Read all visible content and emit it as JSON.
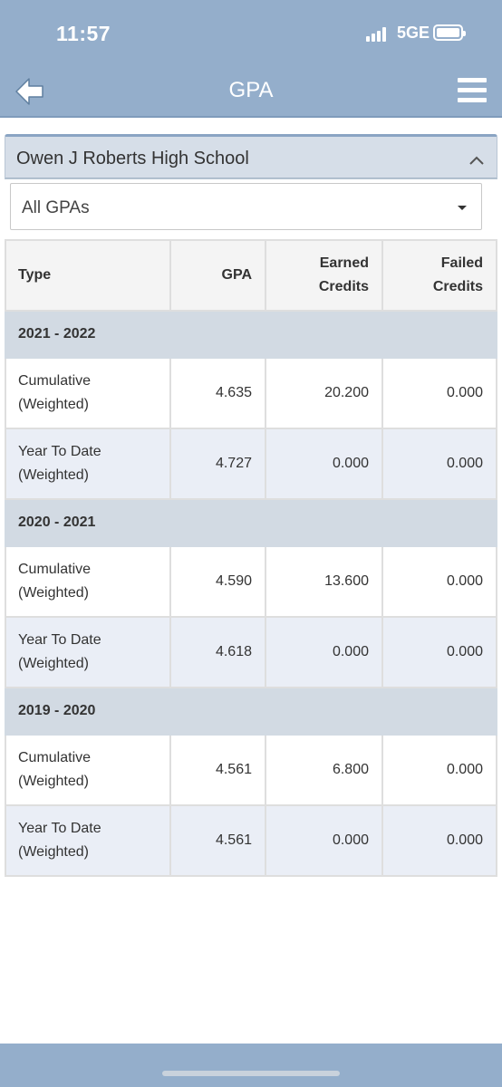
{
  "status_bar": {
    "time": "11:57",
    "network": "5GE"
  },
  "header": {
    "title": "GPA"
  },
  "panel": {
    "school": "Owen J Roberts High School"
  },
  "filter": {
    "selected": "All GPAs"
  },
  "table": {
    "headers": {
      "type": "Type",
      "gpa": "GPA",
      "earned_1": "Earned",
      "earned_2": "Credits",
      "failed_1": "Failed",
      "failed_2": "Credits"
    },
    "years": [
      {
        "label": "2021 - 2022",
        "rows": [
          {
            "type_1": "Cumulative",
            "type_2": "(Weighted)",
            "gpa": "4.635",
            "earned": "20.200",
            "failed": "0.000"
          },
          {
            "type_1": "Year To Date",
            "type_2": "(Weighted)",
            "gpa": "4.727",
            "earned": "0.000",
            "failed": "0.000"
          }
        ]
      },
      {
        "label": "2020 - 2021",
        "rows": [
          {
            "type_1": "Cumulative",
            "type_2": "(Weighted)",
            "gpa": "4.590",
            "earned": "13.600",
            "failed": "0.000"
          },
          {
            "type_1": "Year To Date",
            "type_2": "(Weighted)",
            "gpa": "4.618",
            "earned": "0.000",
            "failed": "0.000"
          }
        ]
      },
      {
        "label": "2019 - 2020",
        "rows": [
          {
            "type_1": "Cumulative",
            "type_2": "(Weighted)",
            "gpa": "4.561",
            "earned": "6.800",
            "failed": "0.000"
          },
          {
            "type_1": "Year To Date",
            "type_2": "(Weighted)",
            "gpa": "4.561",
            "earned": "0.000",
            "failed": "0.000"
          }
        ]
      }
    ]
  },
  "colors": {
    "header_bg": "#94aecb",
    "year_row_bg": "#d2dae3",
    "alt_row_bg": "#eaeef6"
  },
  "icons": {
    "back": "back-arrow-icon",
    "menu": "hamburger-menu-icon",
    "collapse": "chevron-up-icon",
    "dropdown": "caret-down-icon"
  }
}
